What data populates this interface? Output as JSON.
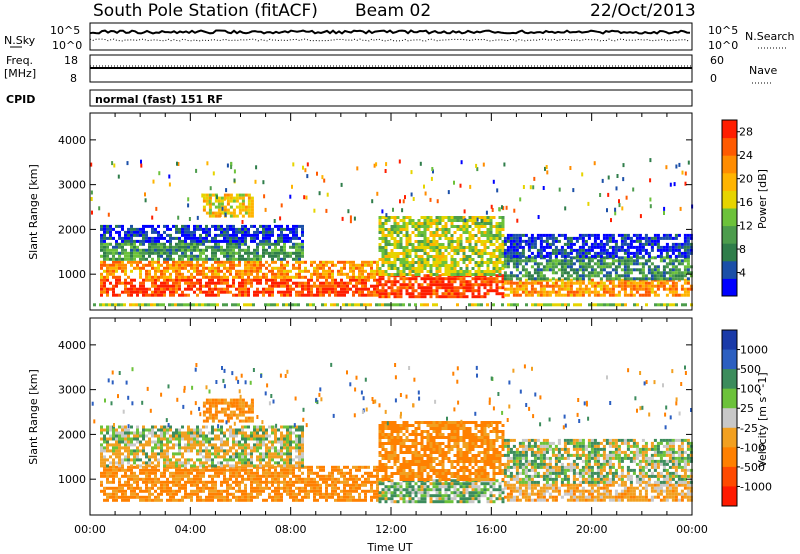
{
  "header": {
    "station": "South Pole Station (fitACF)",
    "beam": "Beam 02",
    "date": "22/Oct/2013"
  },
  "top_panels": {
    "nsky_label": "N.Sky",
    "nsky_ticks": [
      "10^5",
      "10^0"
    ],
    "nsearch_label": "N.Search",
    "nsearch_ticks": [
      "10^5",
      "10^0"
    ],
    "freq_label_1": "Freq.",
    "freq_label_2": "[MHz]",
    "freq_ticks": [
      "18",
      "8"
    ],
    "nave_label": "Nave",
    "nave_ticks": [
      "60",
      "0"
    ],
    "cpid_label": "CPID",
    "cpid_value": "normal (fast) 151 RF"
  },
  "colors": {
    "power": [
      "#0000ff",
      "#1b4fa8",
      "#2f7d4a",
      "#4c9c4c",
      "#6cc23a",
      "#e6d400",
      "#ffb400",
      "#ff8c00",
      "#ff5a00",
      "#ff1e00"
    ],
    "velocity": [
      "#1a3aa8",
      "#2c5fc0",
      "#3c8c5c",
      "#6cc23a",
      "#c8c8c8",
      "#f2a020",
      "#ff8000",
      "#ff4a00",
      "#ff1a00"
    ]
  },
  "chart_data": [
    {
      "type": "heatmap",
      "title": "",
      "xlabel": "Time UT",
      "ylabel": "Slant Range [km]",
      "x_ticks": [
        "00:00",
        "04:00",
        "08:00",
        "12:00",
        "16:00",
        "20:00",
        "00:00"
      ],
      "y_ticks": [
        1000,
        2000,
        3000,
        4000
      ],
      "ylim": [
        200,
        4600
      ],
      "xlim_hours": [
        0,
        24
      ],
      "colorbar_label": "Power [dB]",
      "colorbar_ticks": [
        4,
        8,
        12,
        16,
        20,
        24,
        28
      ],
      "colorbar_range": [
        0,
        30
      ],
      "regions": [
        {
          "x": [
            0,
            24
          ],
          "y": [
            300,
            350
          ],
          "value": 14
        },
        {
          "x": [
            0.4,
            11.5
          ],
          "y": [
            500,
            900
          ],
          "value": 27
        },
        {
          "x": [
            0.4,
            11.5
          ],
          "y": [
            900,
            1300
          ],
          "value": 22
        },
        {
          "x": [
            0.4,
            8.5
          ],
          "y": [
            1300,
            1700
          ],
          "value": 10
        },
        {
          "x": [
            0.4,
            8.5
          ],
          "y": [
            1700,
            2100
          ],
          "value": 3
        },
        {
          "x": [
            4.5,
            6.5
          ],
          "y": [
            2300,
            2800
          ],
          "value": 18
        },
        {
          "x": [
            11.5,
            16.5
          ],
          "y": [
            500,
            1000
          ],
          "value": 28
        },
        {
          "x": [
            11.5,
            16.5
          ],
          "y": [
            1000,
            2300
          ],
          "value": 15
        },
        {
          "x": [
            16.5,
            24
          ],
          "y": [
            500,
            900
          ],
          "value": 22
        },
        {
          "x": [
            16.5,
            24
          ],
          "y": [
            900,
            1400
          ],
          "value": 9
        },
        {
          "x": [
            16.5,
            24
          ],
          "y": [
            1400,
            1900
          ],
          "value": 3
        }
      ]
    },
    {
      "type": "heatmap",
      "title": "",
      "xlabel": "Time UT",
      "ylabel": "Slant Range [km]",
      "x_ticks": [
        "00:00",
        "04:00",
        "08:00",
        "12:00",
        "16:00",
        "20:00",
        "00:00"
      ],
      "y_ticks": [
        1000,
        2000,
        3000,
        4000
      ],
      "ylim": [
        200,
        4600
      ],
      "xlim_hours": [
        0,
        24
      ],
      "colorbar_label": "Velocity [m s^-1]",
      "colorbar_ticks": [
        1000,
        500,
        100,
        25,
        -25,
        -100,
        -500,
        -1000
      ],
      "regions": [
        {
          "x": [
            0.4,
            11.5
          ],
          "y": [
            500,
            1300
          ],
          "value": -300
        },
        {
          "x": [
            0.4,
            8.5
          ],
          "y": [
            1300,
            1800
          ],
          "value": -60
        },
        {
          "x": [
            0.4,
            8.5
          ],
          "y": [
            1800,
            2200
          ],
          "value": 0
        },
        {
          "x": [
            4.5,
            6.5
          ],
          "y": [
            2300,
            2800
          ],
          "value": -300
        },
        {
          "x": [
            11.5,
            16.5
          ],
          "y": [
            500,
            1000
          ],
          "value": 60
        },
        {
          "x": [
            11.5,
            16.5
          ],
          "y": [
            1000,
            2300
          ],
          "value": -300
        },
        {
          "x": [
            16.5,
            24
          ],
          "y": [
            500,
            900
          ],
          "value": -150
        },
        {
          "x": [
            16.5,
            24
          ],
          "y": [
            900,
            1900
          ],
          "value": 0
        }
      ]
    }
  ]
}
